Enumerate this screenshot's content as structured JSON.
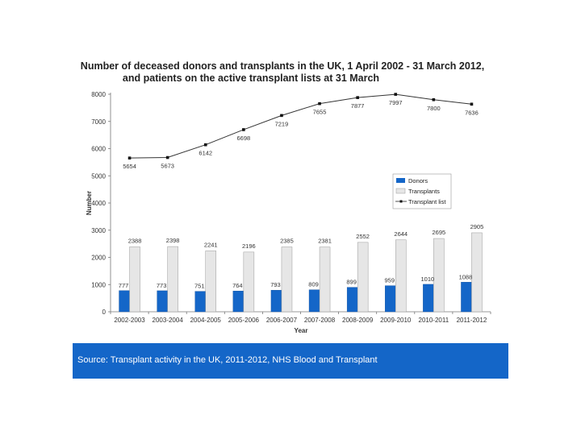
{
  "chart_data": {
    "type": "bar",
    "title_lines": [
      "Number of deceased donors and transplants in the UK, 1 April 2002 - 31 March 2012,",
      "and patients on the active transplant lists at 31 March"
    ],
    "xlabel": "Year",
    "ylabel": "Number",
    "ylim": [
      0,
      8000
    ],
    "yticks": [
      0,
      1000,
      2000,
      3000,
      4000,
      5000,
      6000,
      7000,
      8000
    ],
    "categories": [
      "2002-2003",
      "2003-2004",
      "2004-2005",
      "2005-2006",
      "2006-2007",
      "2007-2008",
      "2008-2009",
      "2009-2010",
      "2010-2011",
      "2011-2012"
    ],
    "series": [
      {
        "name": "Donors",
        "kind": "bar",
        "color": "#1466c8",
        "values": [
          777,
          773,
          751,
          764,
          793,
          809,
          899,
          959,
          1010,
          1088
        ]
      },
      {
        "name": "Transplants",
        "kind": "bar",
        "color": "#e6e6e6",
        "values": [
          2388,
          2398,
          2241,
          2196,
          2385,
          2381,
          2552,
          2644,
          2695,
          2905
        ]
      },
      {
        "name": "Transplant list",
        "kind": "line",
        "color": "#333333",
        "values": [
          5654,
          5673,
          6142,
          6698,
          7219,
          7655,
          7877,
          7997,
          7800,
          7636
        ]
      }
    ],
    "legend_position": "right",
    "grid": false
  },
  "source": {
    "text": "Source:  Transplant activity in the UK, 2011-2012, NHS Blood and Transplant"
  }
}
